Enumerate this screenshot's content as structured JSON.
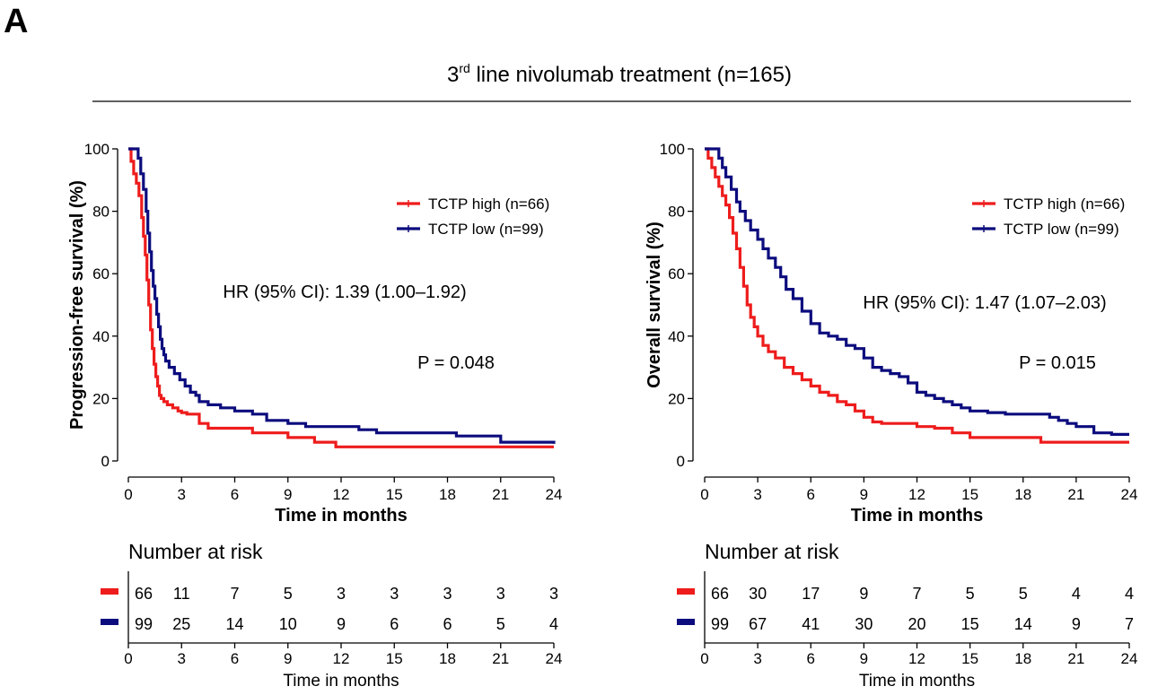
{
  "figure": {
    "panel_letter": "A",
    "title_prefix": "3",
    "title_sup": "rd",
    "title_rest": " line nivolumab treatment  (n=165)"
  },
  "colors": {
    "high": "#ee1c1c",
    "low": "#0c0c7e",
    "axis": "#000000"
  },
  "chart_data": [
    {
      "type": "line",
      "subtype": "kaplan-meier",
      "xlabel": "Time in months",
      "ylabel": "Progression-free survival (%)",
      "xlim": [
        0,
        24
      ],
      "ylim": [
        0,
        100
      ],
      "xticks": [
        "0",
        "3",
        "6",
        "9",
        "12",
        "15",
        "18",
        "21",
        "24"
      ],
      "yticks": [
        "0",
        "20",
        "40",
        "60",
        "80",
        "100"
      ],
      "legend_position": "top-right",
      "annotations": {
        "hr": "HR (95% CI): 1.39 (1.00–1.92)",
        "p": "P = 0.048"
      },
      "series": [
        {
          "name": "TCTP high (n=66)",
          "color": "#ee1c1c",
          "x": [
            0,
            0.15,
            0.3,
            0.45,
            0.6,
            0.75,
            0.85,
            0.95,
            1.05,
            1.15,
            1.25,
            1.35,
            1.45,
            1.55,
            1.65,
            1.75,
            1.85,
            2.0,
            2.2,
            2.5,
            2.8,
            3.0,
            3.3,
            4.0,
            4.5,
            5.5,
            7.0,
            9.0,
            10.5,
            11.7,
            13.0,
            15.0,
            18.0,
            21.0,
            24.0
          ],
          "y": [
            100,
            96,
            92,
            89,
            85,
            78,
            72,
            66,
            58,
            50,
            42,
            36,
            31,
            27,
            24,
            21,
            20,
            19,
            18,
            17,
            16,
            15.5,
            15,
            12,
            10.5,
            10.5,
            9,
            7.5,
            6,
            4.5,
            4.5,
            4.5,
            4.5,
            4.5,
            4.5
          ]
        },
        {
          "name": "TCTP low (n=99)",
          "color": "#0c0c7e",
          "x": [
            0,
            0.4,
            0.55,
            0.7,
            0.85,
            1.0,
            1.1,
            1.2,
            1.3,
            1.4,
            1.5,
            1.6,
            1.7,
            1.8,
            1.9,
            2.0,
            2.1,
            2.3,
            2.6,
            2.9,
            3.2,
            3.5,
            3.8,
            4.0,
            4.5,
            5.2,
            6.0,
            7.0,
            7.8,
            9.0,
            10.0,
            11.5,
            13.0,
            14.0,
            16.0,
            18.5,
            21.0,
            24.0
          ],
          "y": [
            100,
            100,
            97,
            92,
            87,
            80,
            73,
            67,
            61,
            56,
            52,
            47,
            43,
            39,
            36,
            34,
            32,
            30,
            28,
            26,
            24,
            22,
            21,
            19,
            18,
            17,
            16,
            15,
            13,
            12,
            11,
            11,
            10,
            9,
            9,
            8,
            6,
            5.5
          ]
        }
      ],
      "risk_table": {
        "title": "Number at risk",
        "xlabel": "Time in months",
        "rows": [
          {
            "color": "#ee1c1c",
            "values": [
              "66",
              "11",
              "7",
              "5",
              "3",
              "3",
              "3",
              "3",
              "3"
            ]
          },
          {
            "color": "#0c0c7e",
            "values": [
              "99",
              "25",
              "14",
              "10",
              "9",
              "6",
              "6",
              "5",
              "4"
            ]
          }
        ]
      }
    },
    {
      "type": "line",
      "subtype": "kaplan-meier",
      "xlabel": "Time in months",
      "ylabel": "Overall survival (%)",
      "xlim": [
        0,
        24
      ],
      "ylim": [
        0,
        100
      ],
      "xticks": [
        "0",
        "3",
        "6",
        "9",
        "12",
        "15",
        "18",
        "21",
        "24"
      ],
      "yticks": [
        "0",
        "20",
        "40",
        "60",
        "80",
        "100"
      ],
      "legend_position": "top-right",
      "annotations": {
        "hr": "HR (95% CI): 1.47 (1.07–2.03)",
        "p": "P = 0.015"
      },
      "series": [
        {
          "name": "TCTP high (n=66)",
          "color": "#ee1c1c",
          "x": [
            0,
            0.2,
            0.4,
            0.6,
            0.8,
            1.0,
            1.2,
            1.4,
            1.6,
            1.8,
            2.0,
            2.2,
            2.4,
            2.6,
            2.8,
            3.0,
            3.3,
            3.6,
            4.0,
            4.5,
            5.0,
            5.5,
            6.0,
            6.5,
            7.0,
            7.5,
            8.0,
            8.5,
            9.0,
            9.5,
            10.0,
            11.0,
            12.0,
            13.0,
            14.0,
            15.0,
            16.0,
            18.0,
            19.0,
            21.0,
            24.0
          ],
          "y": [
            100,
            97,
            94,
            91,
            88,
            85,
            82,
            78,
            73,
            68,
            62,
            56,
            50,
            46,
            43,
            40,
            37,
            35,
            33,
            30,
            28,
            26,
            24,
            22,
            21,
            19,
            18,
            16,
            14,
            12.5,
            12,
            12,
            11,
            10.5,
            9,
            7.5,
            7.5,
            7.5,
            6,
            6,
            6
          ]
        },
        {
          "name": "TCTP low (n=99)",
          "color": "#0c0c7e",
          "x": [
            0,
            0.4,
            0.8,
            1.0,
            1.2,
            1.5,
            1.8,
            2.0,
            2.3,
            2.6,
            3.0,
            3.3,
            3.6,
            4.0,
            4.3,
            4.6,
            5.0,
            5.5,
            6.0,
            6.5,
            7.0,
            7.5,
            8.0,
            8.5,
            9.0,
            9.5,
            10.0,
            10.5,
            11.0,
            11.5,
            12.0,
            12.5,
            13.0,
            13.5,
            14.0,
            14.5,
            15.0,
            16.0,
            17.0,
            18.0,
            19.0,
            19.5,
            20.0,
            20.5,
            21.0,
            22.0,
            23.0,
            24.0
          ],
          "y": [
            100,
            100,
            97,
            94,
            91,
            87,
            83,
            80,
            77,
            74,
            71,
            68,
            65,
            62,
            59,
            55,
            52,
            48,
            44,
            41,
            40,
            39,
            37,
            36,
            33,
            30,
            29,
            28,
            27,
            25,
            22,
            21,
            20,
            19,
            18,
            17,
            16,
            15.5,
            15,
            15,
            15,
            14,
            13,
            12,
            11,
            9,
            8.5,
            8.5
          ]
        }
      ],
      "risk_table": {
        "title": "Number at risk",
        "xlabel": "Time in months",
        "rows": [
          {
            "color": "#ee1c1c",
            "values": [
              "66",
              "30",
              "17",
              "9",
              "7",
              "5",
              "5",
              "4",
              "4"
            ]
          },
          {
            "color": "#0c0c7e",
            "values": [
              "99",
              "67",
              "41",
              "30",
              "20",
              "15",
              "14",
              "9",
              "7"
            ]
          }
        ]
      }
    }
  ]
}
